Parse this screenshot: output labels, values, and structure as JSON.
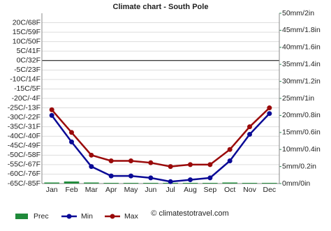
{
  "chart_data": {
    "type": "climate",
    "title": "Climate chart - South Pole",
    "categories": [
      "Jan",
      "Feb",
      "Mar",
      "Apr",
      "May",
      "Jun",
      "Jul",
      "Aug",
      "Sep",
      "Oct",
      "Nov",
      "Dec"
    ],
    "series": [
      {
        "name": "Prec",
        "type": "bar",
        "axis": "y2",
        "color": "#1f8a3a",
        "values": [
          0.3,
          0.6,
          0.3,
          0.2,
          0.2,
          0.2,
          0.2,
          0.2,
          0.2,
          0.3,
          0.2,
          0.2
        ]
      },
      {
        "name": "Min",
        "type": "line",
        "color": "#0a0a96",
        "values": [
          -29,
          -43,
          -56,
          -61,
          -61,
          -62,
          -64,
          -63,
          -62,
          -53,
          -39,
          -28
        ]
      },
      {
        "name": "Max",
        "type": "line",
        "color": "#9a0a0a",
        "values": [
          -26,
          -38,
          -50,
          -53,
          -53,
          -54,
          -56,
          -55,
          -55,
          -47,
          -35,
          -25
        ]
      }
    ],
    "ylim": [
      -65,
      25
    ],
    "yticks": [
      {
        "value": 20,
        "label": "20C/68F"
      },
      {
        "value": 15,
        "label": "15C/59F"
      },
      {
        "value": 10,
        "label": "10C/50F"
      },
      {
        "value": 5,
        "label": "5C/41F"
      },
      {
        "value": 0,
        "label": "0C/32F"
      },
      {
        "value": -5,
        "label": "-5C/23F"
      },
      {
        "value": -10,
        "label": "-10C/14F"
      },
      {
        "value": -15,
        "label": "-15C/5F"
      },
      {
        "value": -20,
        "label": "-20C/-4F"
      },
      {
        "value": -25,
        "label": "-25C/-13F"
      },
      {
        "value": -30,
        "label": "-30C/-22F"
      },
      {
        "value": -35,
        "label": "-35C/-31F"
      },
      {
        "value": -40,
        "label": "-40C/-40F"
      },
      {
        "value": -45,
        "label": "-45C/-49F"
      },
      {
        "value": -50,
        "label": "-50C/-58F"
      },
      {
        "value": -55,
        "label": "-55C/-67F"
      },
      {
        "value": -60,
        "label": "-60C/-76F"
      },
      {
        "value": -65,
        "label": "-65C/-85F"
      }
    ],
    "y2lim": [
      0,
      50
    ],
    "y2ticks": [
      {
        "value": 50,
        "label": "50mm/2in"
      },
      {
        "value": 45,
        "label": "45mm/1.8in"
      },
      {
        "value": 40,
        "label": "40mm/1.6in"
      },
      {
        "value": 35,
        "label": "35mm/1.4in"
      },
      {
        "value": 30,
        "label": "30mm/1.2in"
      },
      {
        "value": 25,
        "label": "25mm/1in"
      },
      {
        "value": 20,
        "label": "20mm/0.8in"
      },
      {
        "value": 15,
        "label": "15mm/0.6in"
      },
      {
        "value": 10,
        "label": "10mm/0.4in"
      },
      {
        "value": 5,
        "label": "5mm/0.2in"
      },
      {
        "value": 0,
        "label": "0mm/0in"
      }
    ],
    "y2color": "#2e8b57",
    "grid": true,
    "legend": "bottom",
    "watermark": "© climatestotravel.com"
  }
}
